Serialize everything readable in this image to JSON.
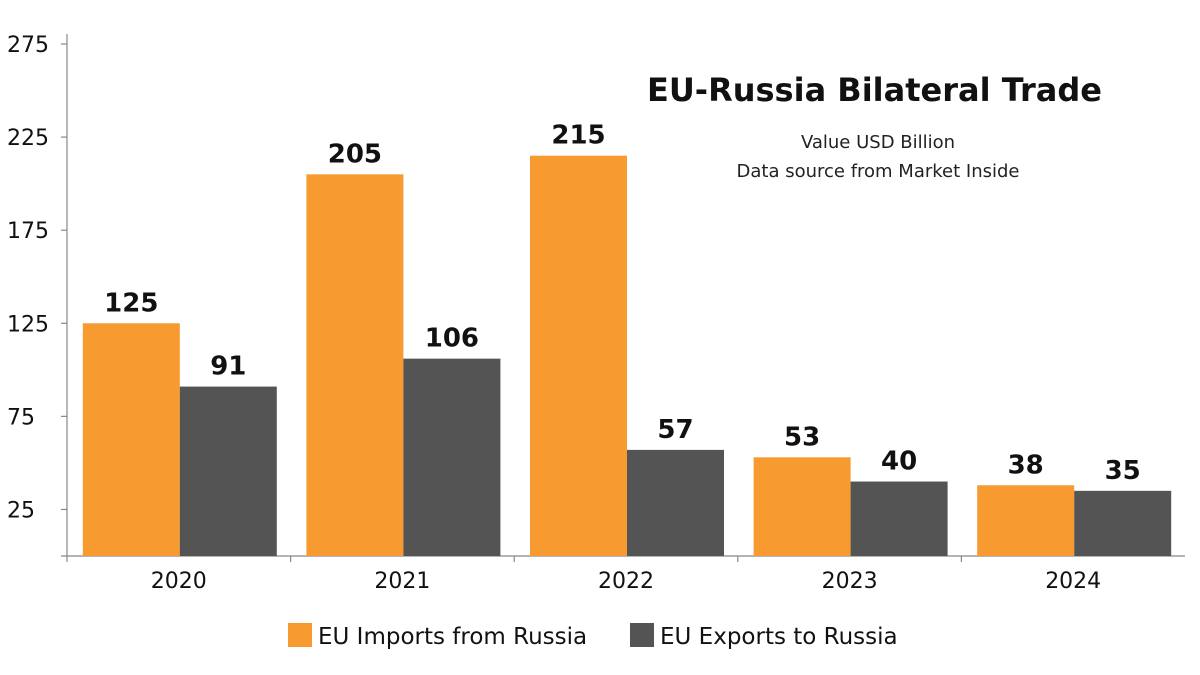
{
  "chart_data": {
    "type": "bar",
    "title": "EU-Russia Bilateral Trade",
    "subtitle_lines": [
      "Value USD Billion",
      "Data source from Market Inside"
    ],
    "categories": [
      "2020",
      "2021",
      "2022",
      "2023",
      "2024"
    ],
    "series": [
      {
        "name": "EU Imports from Russia",
        "color": "#F79A30",
        "values": [
          125,
          205,
          215,
          53,
          38
        ]
      },
      {
        "name": "EU Exports to Russia",
        "color": "#545454",
        "values": [
          91,
          106,
          57,
          40,
          35
        ]
      }
    ],
    "yticks": [
      25,
      75,
      125,
      175,
      225,
      275
    ],
    "ylim": [
      0,
      275
    ],
    "grid": false,
    "legend_position": "bottom-center",
    "xlabel": "",
    "ylabel": ""
  }
}
